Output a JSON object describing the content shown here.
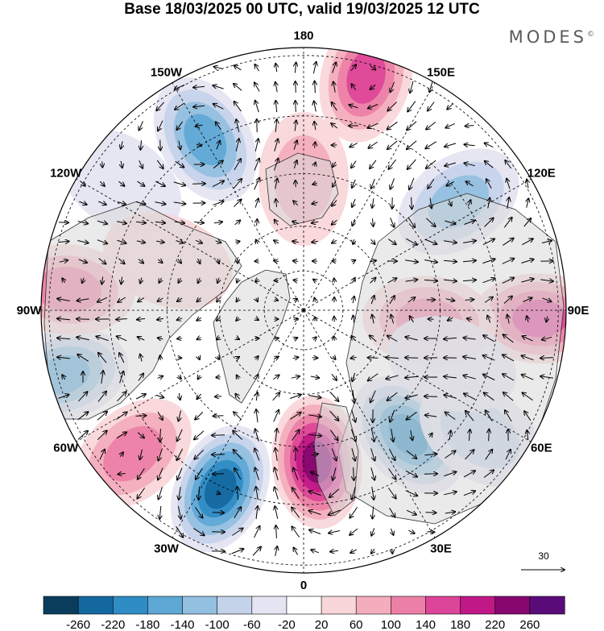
{
  "title": "Base 18/03/2025 00 UTC, valid 19/03/2025 12 UTC",
  "brand": {
    "name": "MODES",
    "mark": "©"
  },
  "map": {
    "projection": "north-polar-stereographic",
    "longitude_labels": [
      {
        "text": "180",
        "lon": 180
      },
      {
        "text": "150E",
        "lon": 150
      },
      {
        "text": "120E",
        "lon": 120
      },
      {
        "text": "90E",
        "lon": 90
      },
      {
        "text": "60E",
        "lon": 60
      },
      {
        "text": "30E",
        "lon": 30
      },
      {
        "text": "0",
        "lon": 0
      },
      {
        "text": "30W",
        "lon": -30
      },
      {
        "text": "60W",
        "lon": -60
      },
      {
        "text": "90W",
        "lon": -90
      },
      {
        "text": "120W",
        "lon": -120
      },
      {
        "text": "150W",
        "lon": -150
      }
    ],
    "anomalies": [
      {
        "lon": 5,
        "colat": 0.58,
        "value": 240
      },
      {
        "lon": 40,
        "colat": 0.62,
        "value": -200
      },
      {
        "lon": -25,
        "colat": 0.75,
        "value": -240
      },
      {
        "lon": -50,
        "colat": 0.85,
        "value": 130
      },
      {
        "lon": -75,
        "colat": 0.95,
        "value": -180
      },
      {
        "lon": -95,
        "colat": 0.9,
        "value": 130
      },
      {
        "lon": -125,
        "colat": 0.85,
        "value": -30
      },
      {
        "lon": -150,
        "colat": 0.75,
        "value": -150
      },
      {
        "lon": 165,
        "colat": 0.92,
        "value": 150
      },
      {
        "lon": 125,
        "colat": 0.72,
        "value": -140
      },
      {
        "lon": 88,
        "colat": 0.9,
        "value": 160
      },
      {
        "lon": 85,
        "colat": 0.48,
        "value": 130
      },
      {
        "lon": 55,
        "colat": 0.82,
        "value": -90
      },
      {
        "lon": 180,
        "colat": 0.5,
        "value": 70
      },
      {
        "lon": -110,
        "colat": 0.55,
        "value": 40
      },
      {
        "lon": 70,
        "colat": 0.6,
        "value": -40
      }
    ],
    "reference_vector": {
      "label": "30"
    }
  },
  "colorbar": {
    "ticks": [
      "-260",
      "-220",
      "-180",
      "-140",
      "-100",
      "-60",
      "-20",
      "20",
      "60",
      "100",
      "140",
      "180",
      "220",
      "260"
    ],
    "colors": [
      "#0a3d5c",
      "#1468a0",
      "#2f8cc4",
      "#5ea8d6",
      "#93bfe0",
      "#c4d2ea",
      "#e4e4f2",
      "#ffffff",
      "#f9d6d8",
      "#f3adbc",
      "#ec7fa6",
      "#dd4598",
      "#c01886",
      "#86086f",
      "#5a0b7a"
    ]
  }
}
